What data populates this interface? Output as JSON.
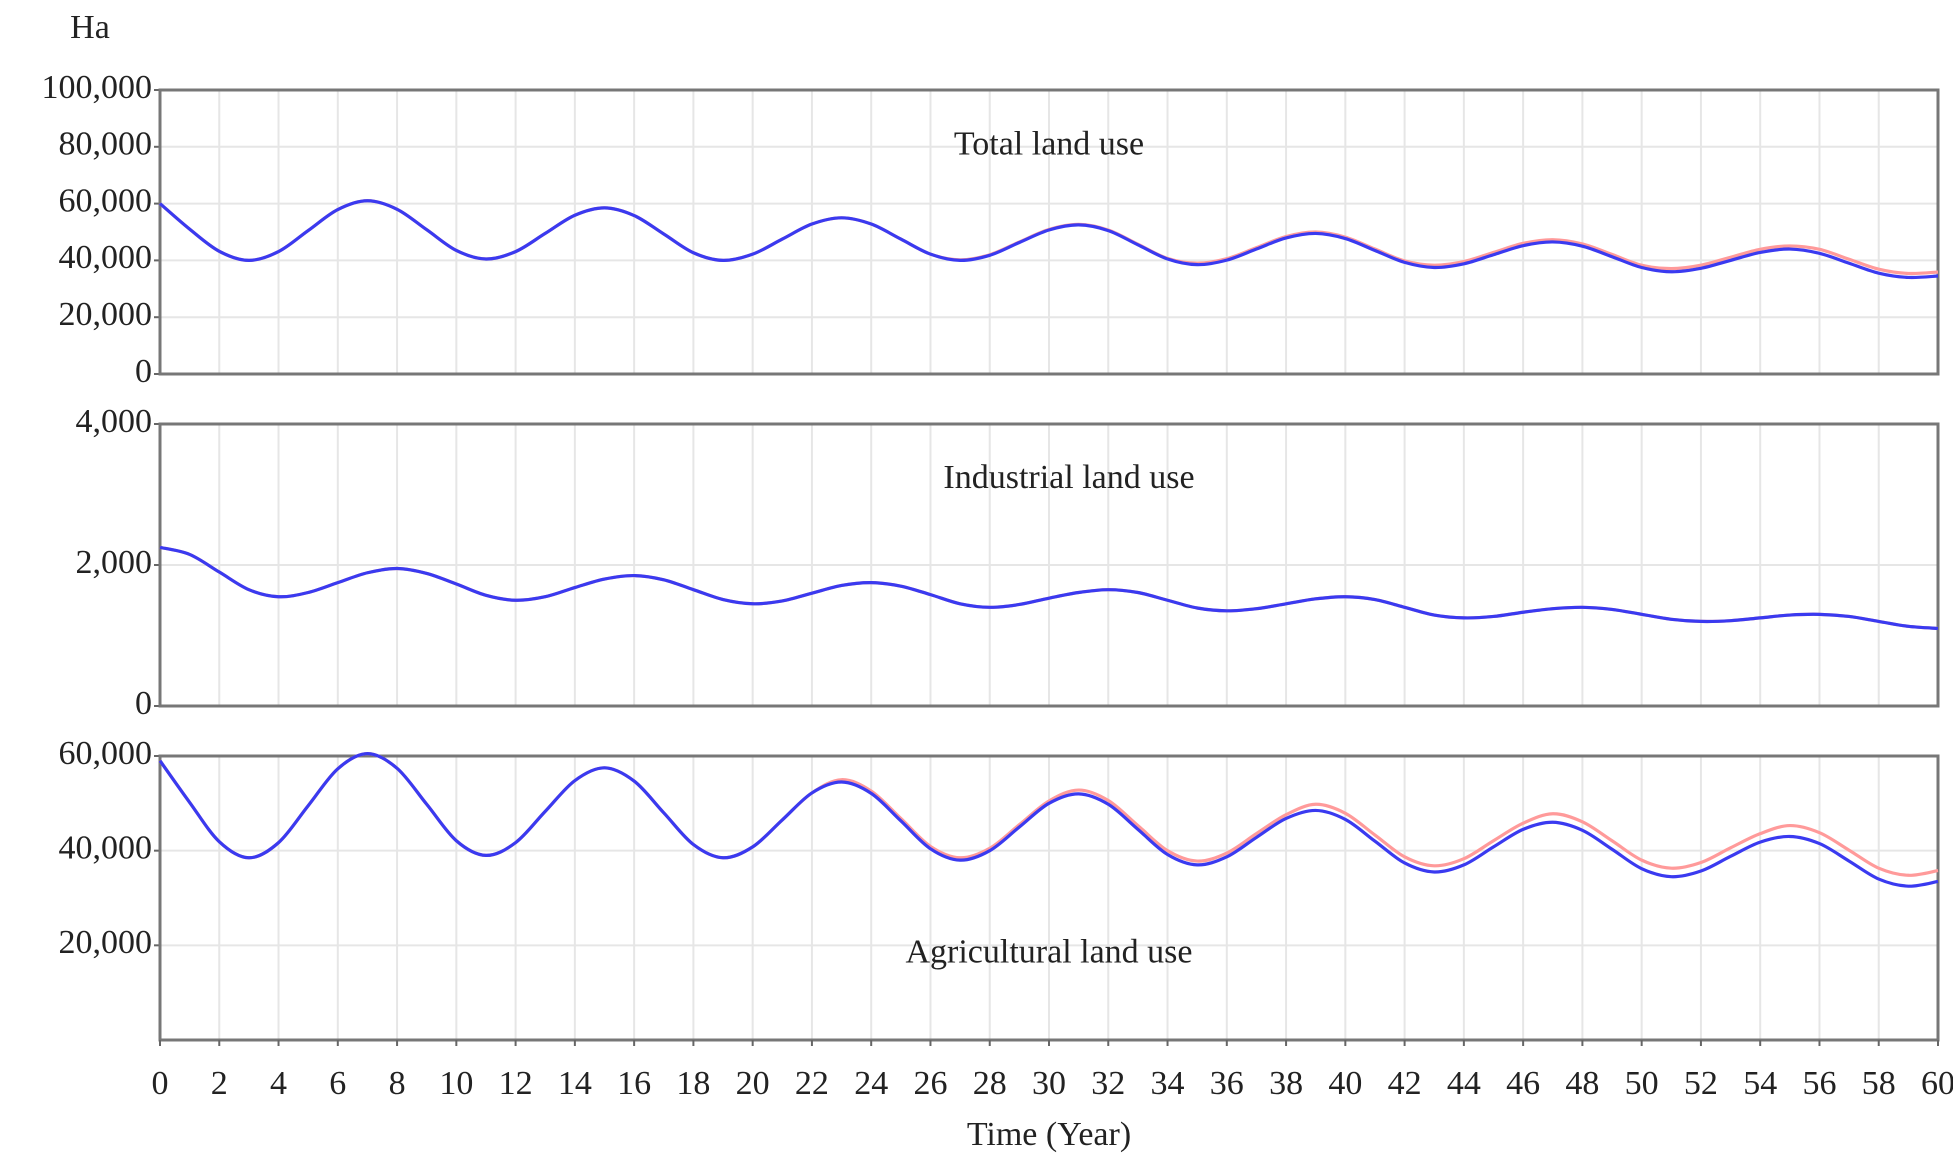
{
  "chart_data": [
    {
      "type": "line",
      "title": "Total land use",
      "ylabel": "Ha",
      "grid": true,
      "x": [
        0,
        1,
        2,
        3,
        4,
        5,
        6,
        7,
        8,
        9,
        10,
        11,
        12,
        13,
        14,
        15,
        16,
        17,
        18,
        19,
        20,
        21,
        22,
        23,
        24,
        25,
        26,
        27,
        28,
        29,
        30,
        31,
        32,
        33,
        34,
        35,
        36,
        37,
        38,
        39,
        40,
        41,
        42,
        43,
        44,
        45,
        46,
        47,
        48,
        49,
        50,
        51,
        52,
        53,
        54,
        55,
        56,
        57,
        58,
        59,
        60
      ],
      "xlim": [
        0,
        60
      ],
      "ylim": [
        0,
        100000
      ],
      "yticks": [
        0,
        {
          "value": 20000,
          "label": "20,000"
        },
        {
          "value": 40000,
          "label": "40,000"
        },
        {
          "value": 60000,
          "label": "60,000"
        },
        {
          "value": 80000,
          "label": "80,000"
        },
        {
          "value": 100000,
          "label": "100,000"
        }
      ],
      "series": [
        {
          "color": "#ff9a9a",
          "values": [
            60000,
            51000,
            43200,
            40000,
            43100,
            50500,
            57900,
            61000,
            58000,
            50800,
            43500,
            40500,
            43100,
            49500,
            55900,
            58500,
            55800,
            49300,
            42700,
            40000,
            42200,
            47500,
            52800,
            55000,
            52800,
            47500,
            42200,
            40200,
            42000,
            46500,
            50900,
            52700,
            50700,
            45700,
            40700,
            39000,
            40600,
            44500,
            48400,
            50000,
            48200,
            44000,
            39800,
            38300,
            39600,
            42800,
            46000,
            47300,
            45800,
            42100,
            38300,
            37100,
            38300,
            41100,
            43900,
            45100,
            43900,
            40400,
            36900,
            35400,
            35900
          ]
        },
        {
          "color": "#3a3af0",
          "values": [
            60000,
            51000,
            43200,
            40000,
            43100,
            50500,
            57900,
            61000,
            58000,
            50800,
            43500,
            40500,
            43100,
            49500,
            55900,
            58500,
            55800,
            49300,
            42700,
            40000,
            42200,
            47500,
            52800,
            55000,
            52800,
            47500,
            42200,
            40000,
            41800,
            46300,
            50700,
            52500,
            50500,
            45500,
            40500,
            38500,
            40100,
            44000,
            47900,
            49500,
            47700,
            43500,
            39300,
            37500,
            38800,
            42000,
            45200,
            46500,
            45000,
            41300,
            37500,
            36000,
            37200,
            40000,
            42800,
            44000,
            42500,
            39000,
            35500,
            34000,
            34500
          ]
        }
      ]
    },
    {
      "type": "line",
      "title": "Industrial land use",
      "grid": true,
      "x": [
        0,
        1,
        2,
        3,
        4,
        5,
        6,
        7,
        8,
        9,
        10,
        11,
        12,
        13,
        14,
        15,
        16,
        17,
        18,
        19,
        20,
        21,
        22,
        23,
        24,
        25,
        26,
        27,
        28,
        29,
        30,
        31,
        32,
        33,
        34,
        35,
        36,
        37,
        38,
        39,
        40,
        41,
        42,
        43,
        44,
        45,
        46,
        47,
        48,
        49,
        50,
        51,
        52,
        53,
        54,
        55,
        56,
        57,
        58,
        59,
        60
      ],
      "xlim": [
        0,
        60
      ],
      "ylim": [
        0,
        4000
      ],
      "yticks": [
        0,
        {
          "value": 2000,
          "label": "2,000"
        },
        {
          "value": 4000,
          "label": "4,000"
        }
      ],
      "series": [
        {
          "color": "#ff9a9a",
          "values": [
            2250,
            2150,
            1900,
            1650,
            1550,
            1610,
            1750,
            1890,
            1950,
            1880,
            1730,
            1570,
            1500,
            1550,
            1680,
            1800,
            1850,
            1790,
            1650,
            1510,
            1450,
            1490,
            1600,
            1710,
            1750,
            1700,
            1580,
            1450,
            1400,
            1440,
            1530,
            1610,
            1650,
            1610,
            1500,
            1390,
            1350,
            1380,
            1450,
            1520,
            1550,
            1510,
            1400,
            1290,
            1250,
            1270,
            1330,
            1380,
            1400,
            1370,
            1300,
            1230,
            1200,
            1210,
            1250,
            1290,
            1300,
            1270,
            1200,
            1130,
            1100
          ]
        },
        {
          "color": "#3a3af0",
          "values": [
            2250,
            2150,
            1900,
            1650,
            1550,
            1610,
            1750,
            1890,
            1950,
            1880,
            1730,
            1570,
            1500,
            1550,
            1680,
            1800,
            1850,
            1790,
            1650,
            1510,
            1450,
            1490,
            1600,
            1710,
            1750,
            1700,
            1580,
            1450,
            1400,
            1440,
            1530,
            1610,
            1650,
            1610,
            1500,
            1390,
            1350,
            1380,
            1450,
            1520,
            1550,
            1510,
            1400,
            1290,
            1250,
            1270,
            1330,
            1380,
            1400,
            1370,
            1300,
            1230,
            1200,
            1210,
            1250,
            1290,
            1300,
            1270,
            1200,
            1130,
            1100
          ]
        }
      ]
    },
    {
      "type": "line",
      "title": "Agricultural land use",
      "xlabel": "Time (Year)",
      "grid": true,
      "x": [
        0,
        1,
        2,
        3,
        4,
        5,
        6,
        7,
        8,
        9,
        10,
        11,
        12,
        13,
        14,
        15,
        16,
        17,
        18,
        19,
        20,
        21,
        22,
        23,
        24,
        25,
        26,
        27,
        28,
        29,
        30,
        31,
        32,
        33,
        34,
        35,
        36,
        37,
        38,
        39,
        40,
        41,
        42,
        43,
        44,
        45,
        46,
        47,
        48,
        49,
        50,
        51,
        52,
        53,
        54,
        55,
        56,
        57,
        58,
        59,
        60
      ],
      "xlim": [
        0,
        60
      ],
      "ylim": [
        0,
        60000
      ],
      "xticks": [
        0,
        2,
        4,
        6,
        8,
        10,
        12,
        14,
        16,
        18,
        20,
        22,
        24,
        26,
        28,
        30,
        32,
        34,
        36,
        38,
        40,
        42,
        44,
        46,
        48,
        50,
        52,
        54,
        56,
        58,
        60
      ],
      "yticks": [
        {
          "value": 20000,
          "label": "20,000"
        },
        {
          "value": 40000,
          "label": "40,000"
        },
        {
          "value": 60000,
          "label": "60,000"
        }
      ],
      "series": [
        {
          "color": "#ff9a9a",
          "values": [
            59000,
            50200,
            41900,
            38500,
            41700,
            49500,
            57300,
            60500,
            57400,
            49800,
            42100,
            39000,
            41700,
            48300,
            54800,
            57500,
            54700,
            48000,
            41300,
            38500,
            40800,
            46500,
            52200,
            55000,
            52600,
            46800,
            40900,
            38500,
            40500,
            45500,
            50500,
            52800,
            50600,
            45300,
            40000,
            37800,
            39500,
            43600,
            47600,
            49800,
            47900,
            43300,
            38700,
            36800,
            38300,
            42100,
            45800,
            47800,
            46100,
            42100,
            38000,
            36300,
            37500,
            40600,
            43600,
            45300,
            43800,
            40100,
            36300,
            34800,
            35800
          ]
        },
        {
          "color": "#3a3af0",
          "values": [
            59000,
            50200,
            41900,
            38500,
            41700,
            49500,
            57300,
            60500,
            57400,
            49800,
            42100,
            39000,
            41700,
            48300,
            54800,
            57500,
            54700,
            48000,
            41300,
            38500,
            40800,
            46500,
            52200,
            54500,
            52100,
            46300,
            40400,
            38000,
            40000,
            45000,
            50000,
            52000,
            49800,
            44500,
            39200,
            37000,
            38700,
            42800,
            46800,
            48500,
            46600,
            42000,
            37400,
            35500,
            37000,
            40800,
            44500,
            46000,
            44300,
            40300,
            36200,
            34500,
            35700,
            38800,
            41800,
            43000,
            41500,
            37800,
            34000,
            32500,
            33500
          ]
        }
      ]
    }
  ]
}
